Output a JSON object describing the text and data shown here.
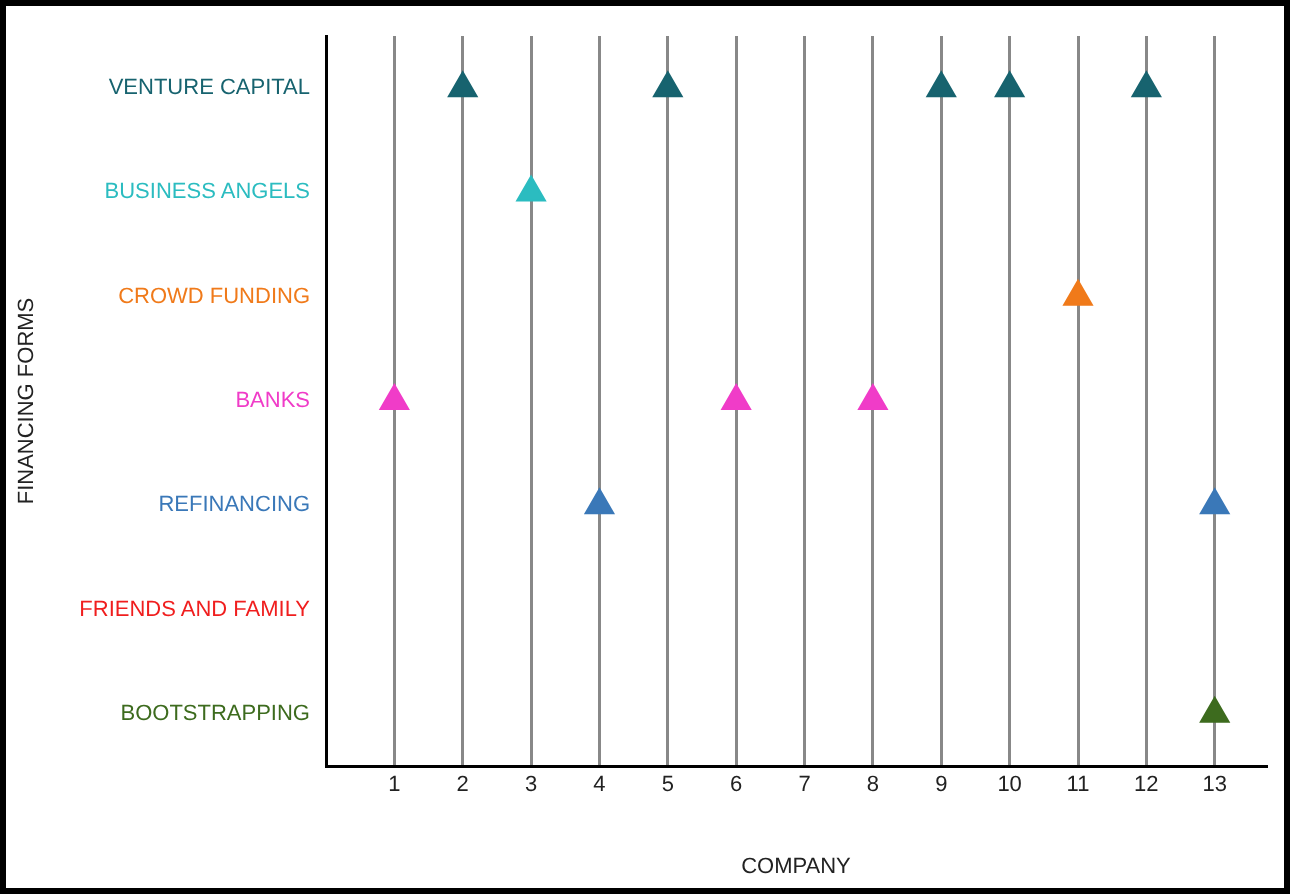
{
  "chart_data": {
    "type": "scatter",
    "orientation": "horizontal",
    "xlabel": "COMPANY",
    "ylabel": "FINANCING FORMS",
    "categories": [
      "VENTURE CAPITAL",
      "BUSINESS ANGELS",
      "CROWD FUNDING",
      "BANKS",
      "REFINANCING",
      "FRIENDS AND FAMILY",
      "BOOTSTRAPPING"
    ],
    "xlim": [
      0,
      13.75
    ],
    "xticks": [
      1,
      2,
      3,
      4,
      5,
      6,
      7,
      8,
      9,
      10,
      11,
      12,
      13
    ],
    "grid": "x",
    "legend": false,
    "marker": "triangle",
    "series": [
      {
        "colors": [
          "#17636f",
          "#2bbcc0",
          "#f07a1a",
          "#f03cc8",
          "#3a78b8",
          "#f01e1e",
          "#3d6b1e"
        ],
        "values": [
          2,
          3,
          11,
          1,
          4,
          null,
          13
        ]
      },
      {
        "colors": [
          "#17636f",
          "#2bbcc0",
          "#f07a1a",
          "#f03cc8",
          "#3a78b8",
          "#f01e1e",
          "#3d6b1e"
        ],
        "values": [
          5,
          null,
          null,
          6,
          13,
          null,
          null
        ]
      },
      {
        "colors": [
          "#17636f",
          "#2bbcc0",
          "#f07a1a",
          "#f03cc8",
          "#3a78b8",
          "#f01e1e",
          "#3d6b1e"
        ],
        "values": [
          9,
          null,
          null,
          8,
          null,
          null,
          null
        ]
      },
      {
        "colors": [
          "#17636f",
          "#2bbcc0",
          "#f07a1a",
          "#f03cc8",
          "#3a78b8",
          "#f01e1e",
          "#3d6b1e"
        ],
        "values": [
          10,
          null,
          null,
          null,
          null,
          null,
          null
        ]
      },
      {
        "colors": [
          "#17636f",
          "#2bbcc0",
          "#f07a1a",
          "#f03cc8",
          "#3a78b8",
          "#f01e1e",
          "#3d6b1e"
        ],
        "values": [
          12,
          null,
          null,
          null,
          null,
          null,
          null
        ]
      }
    ]
  }
}
